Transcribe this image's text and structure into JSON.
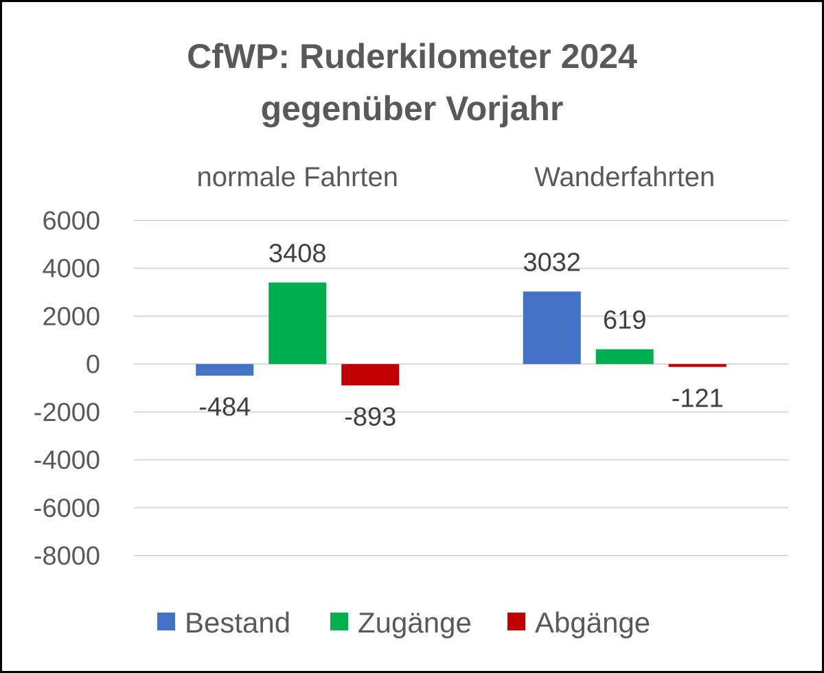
{
  "chart_data": {
    "type": "bar",
    "title_lines": [
      "CfWP: Ruderkilometer 2024",
      "gegenüber Vorjahr"
    ],
    "categories": [
      "normale Fahrten",
      "Wanderfahrten"
    ],
    "series": [
      {
        "name": "Bestand",
        "color": "#4472C4",
        "values": [
          -484,
          3032
        ]
      },
      {
        "name": "Zugänge",
        "color": "#00B050",
        "values": [
          3408,
          619
        ]
      },
      {
        "name": "Abgänge",
        "color": "#C00000",
        "values": [
          -893,
          -121
        ]
      }
    ],
    "data_labels": [
      [
        "-484",
        "3032"
      ],
      [
        "3408",
        "619"
      ],
      [
        "-893",
        "-121"
      ]
    ],
    "ylim": [
      -8000,
      6000
    ],
    "yticks": [
      6000,
      4000,
      2000,
      0,
      -2000,
      -4000,
      -6000,
      -8000
    ],
    "grid": true,
    "legend": "bottom",
    "xlabel": "",
    "ylabel": ""
  }
}
